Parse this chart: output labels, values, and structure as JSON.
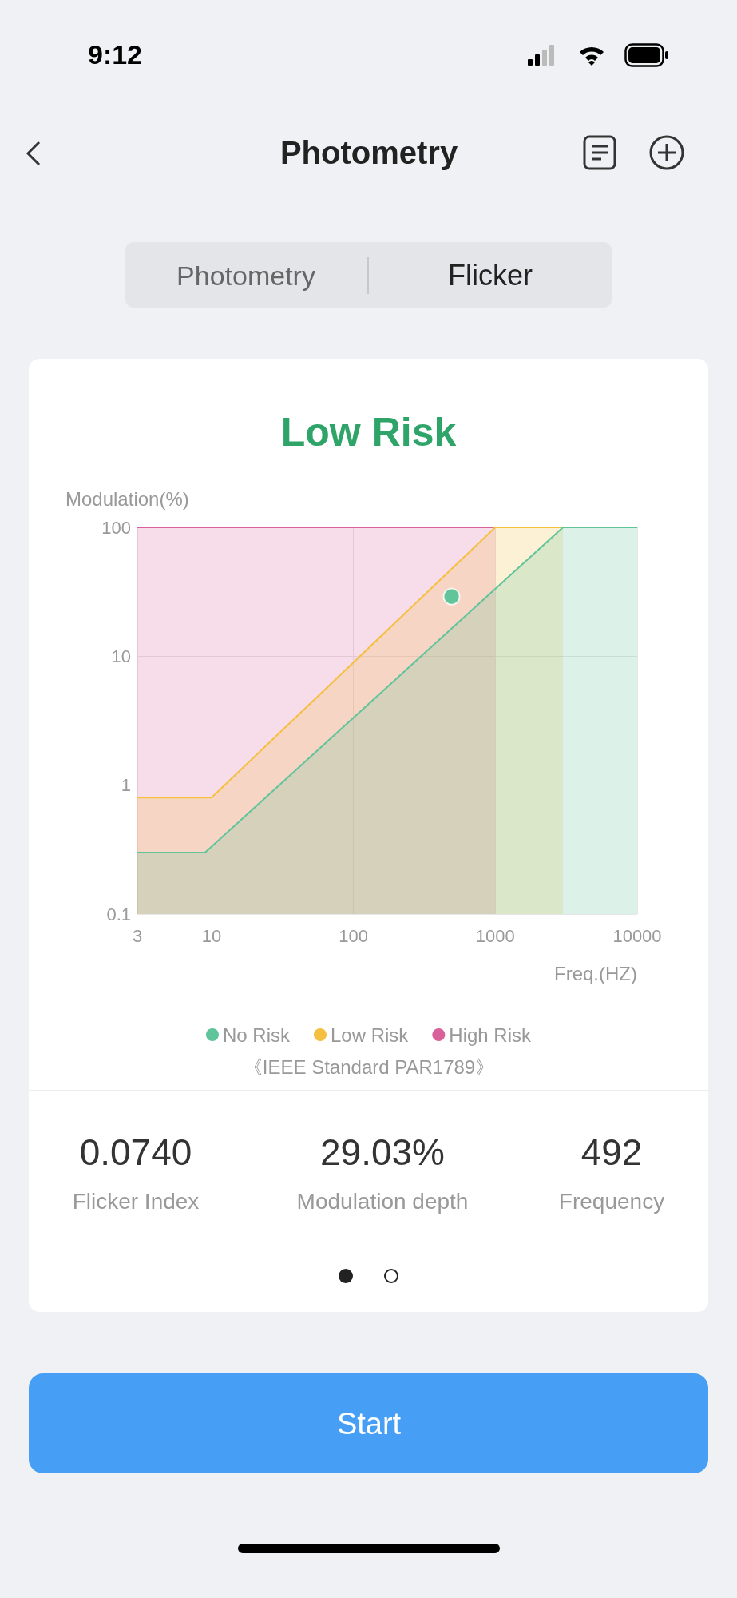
{
  "chart_data": {
    "type": "area",
    "title": "Low Risk",
    "xlabel": "Freq.(HZ)",
    "ylabel": "Modulation(%)",
    "log": "xy",
    "grid": true,
    "legend": "bottom",
    "marker": "none",
    "xlim": [
      3,
      10000
    ],
    "ylim": [
      0.1,
      100
    ],
    "xticks": [
      3,
      10,
      100,
      1000,
      10000
    ],
    "yticks": [
      0.1,
      1,
      10,
      100
    ],
    "series": [
      {
        "name": "No Risk",
        "color": "#5fc49a",
        "x": [
          3,
          9,
          3000,
          10000
        ],
        "values": [
          0.3,
          0.3,
          100,
          100
        ]
      },
      {
        "name": "Low Risk",
        "color": "#f5c040",
        "x": [
          3,
          10,
          1000,
          3000
        ],
        "values": [
          0.8,
          0.8,
          100,
          100
        ]
      },
      {
        "name": "High Risk",
        "color": "#d9609a",
        "x": [
          3,
          1000
        ],
        "values": [
          100,
          100
        ]
      },
      {
        "type": "scatter",
        "marker": "circle",
        "color": "#3dbf8f",
        "x": [
          492
        ],
        "values": [
          29.03
        ]
      }
    ],
    "annotations": [
      "9:12",
      "Photometry",
      "Photometry",
      "Flicker",
      "《IEEE Standard PAR1789》",
      "0.0740",
      "Flicker Index",
      "29.03%",
      "Modulation depth",
      "492",
      "Frequency",
      "Start"
    ]
  }
}
